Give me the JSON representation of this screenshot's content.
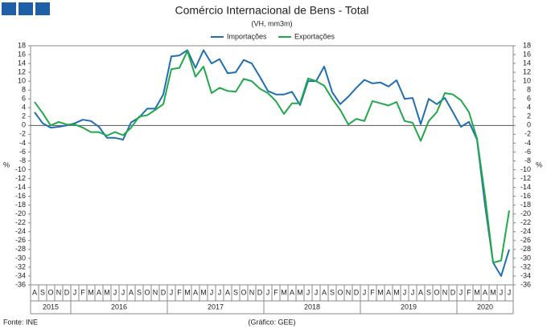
{
  "chart_data": {
    "type": "line",
    "title": "Comércio Internacional de Bens - Total",
    "subtitle": "(VH, mm3m)",
    "source": "Fonte: INE",
    "credit": "(Gráfico: GEE)",
    "ylabel": "%",
    "y2label": "%",
    "categories": [
      "A",
      "S",
      "O",
      "N",
      "D",
      "J",
      "F",
      "M",
      "A",
      "M",
      "J",
      "J",
      "A",
      "S",
      "O",
      "N",
      "D",
      "J",
      "F",
      "M",
      "A",
      "M",
      "J",
      "J",
      "A",
      "S",
      "O",
      "N",
      "D",
      "J",
      "F",
      "M",
      "A",
      "M",
      "J",
      "J",
      "A",
      "S",
      "O",
      "N",
      "D",
      "J",
      "F",
      "M",
      "A",
      "M",
      "J",
      "J",
      "A",
      "S",
      "O",
      "N",
      "D",
      "J",
      "F",
      "M",
      "A",
      "M",
      "J",
      "J"
    ],
    "x_groups": [
      {
        "label": "2015",
        "count": 5
      },
      {
        "label": "2016",
        "count": 12
      },
      {
        "label": "2017",
        "count": 12
      },
      {
        "label": "2018",
        "count": 12
      },
      {
        "label": "2019",
        "count": 12
      },
      {
        "label": "2020",
        "count": 7
      }
    ],
    "series": [
      {
        "name": "Importações",
        "color": "#1f6fb2",
        "values": [
          3,
          0.5,
          -0.5,
          -0.3,
          0,
          0.5,
          1.3,
          1,
          -0.3,
          -2.8,
          -2.8,
          -3.2,
          0.7,
          1.8,
          3.8,
          3.8,
          7,
          15.6,
          15.8,
          17,
          13,
          17,
          14,
          15,
          11.8,
          12,
          14.8,
          14,
          11,
          7.8,
          7,
          7,
          7.6,
          4.6,
          10,
          10,
          13.3,
          7.5,
          4.8,
          6.5,
          8.5,
          10.3,
          9.5,
          9.7,
          8.8,
          10.2,
          6,
          6.2,
          0.3,
          6,
          4.8,
          6.2,
          3,
          -0.3,
          0.8,
          -3.2,
          -18,
          -31,
          -34,
          -28
        ]
      },
      {
        "name": "Exportações",
        "color": "#22a84a",
        "values": [
          5.3,
          2.8,
          0,
          0.8,
          0.2,
          0.2,
          -0.5,
          -1.5,
          -1.5,
          -2.3,
          -1.5,
          -2.2,
          -0.5,
          2,
          2.3,
          3.5,
          4.8,
          12.7,
          13,
          16.8,
          11,
          13.3,
          7.3,
          8.5,
          7.8,
          7.6,
          10.5,
          10,
          8.3,
          7.3,
          5.5,
          2.6,
          5,
          5,
          10.6,
          10,
          9,
          6,
          3.5,
          0.2,
          1.5,
          1,
          5.5,
          5,
          4.5,
          5.3,
          1,
          0.6,
          -3.5,
          1,
          3,
          7.3,
          7,
          5.7,
          3,
          -3,
          -16,
          -31,
          -30.5,
          -19.2
        ]
      }
    ],
    "ylim": [
      -36,
      18
    ],
    "yticks": [
      -36,
      -34,
      -32,
      -30,
      -28,
      -26,
      -24,
      -22,
      -20,
      -18,
      -16,
      -14,
      -12,
      -10,
      -8,
      -6,
      -4,
      -2,
      0,
      2,
      4,
      6,
      8,
      10,
      12,
      14,
      16,
      18
    ],
    "y2lim": [
      -36,
      18
    ],
    "y2ticks": [
      -36,
      -34,
      -32,
      -30,
      -28,
      -26,
      -24,
      -22,
      -20,
      -18,
      -16,
      -14,
      -12,
      -10,
      -8,
      -6,
      -4,
      -2,
      0,
      2,
      4,
      6,
      8,
      10,
      12,
      14,
      16,
      18
    ],
    "legend": "top",
    "grid": false
  }
}
